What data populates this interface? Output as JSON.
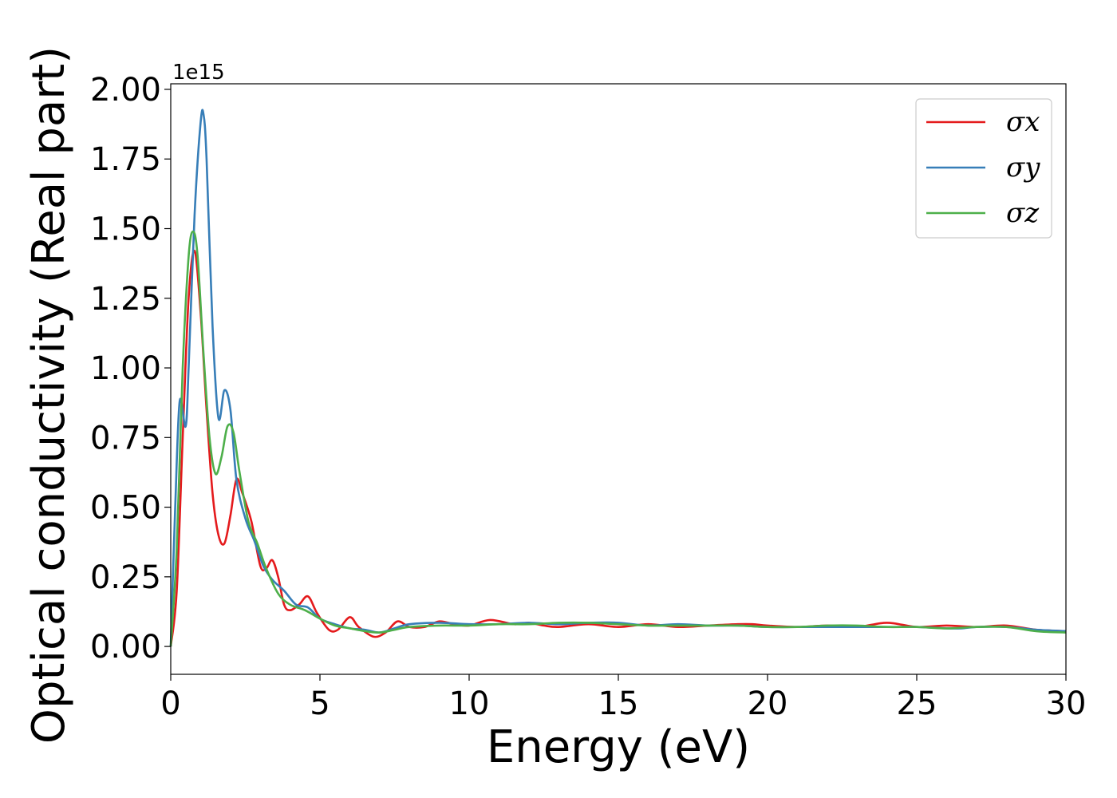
{
  "chart_data": {
    "type": "line",
    "title": "",
    "xlabel": "Energy (eV)",
    "ylabel": "Optical conductivity (Real part)",
    "y_offset_label": "1e15",
    "xlim": [
      0,
      30
    ],
    "ylim": [
      -0.1,
      2.02
    ],
    "x_ticks": [
      0,
      5,
      10,
      15,
      20,
      25,
      30
    ],
    "x_tick_labels": [
      "0",
      "5",
      "10",
      "15",
      "20",
      "25",
      "30"
    ],
    "y_ticks": [
      0,
      0.25,
      0.5,
      0.75,
      1.0,
      1.25,
      1.5,
      1.75,
      2.0
    ],
    "y_tick_labels": [
      "0.00",
      "0.25",
      "0.50",
      "0.75",
      "1.00",
      "1.25",
      "1.50",
      "1.75",
      "2.00"
    ],
    "grid": false,
    "legend_position": "top-right",
    "series": [
      {
        "name": "σx",
        "color": "#e41a1c",
        "x": [
          0,
          0.2,
          0.4,
          0.6,
          0.8,
          1.0,
          1.2,
          1.4,
          1.6,
          1.8,
          2.0,
          2.2,
          2.4,
          2.7,
          3.0,
          3.2,
          3.4,
          3.6,
          3.8,
          4.0,
          4.3,
          4.6,
          4.9,
          5.3,
          5.6,
          6.0,
          6.3,
          6.8,
          7.2,
          7.6,
          8.0,
          8.5,
          9.0,
          9.5,
          10.0,
          10.7,
          11.5,
          12.0,
          12.5,
          13.0,
          14.0,
          15.0,
          16.0,
          17.0,
          18.0,
          19.0,
          19.5,
          20.0,
          21.0,
          22.0,
          23.0,
          24.0,
          25.0,
          26.0,
          27.0,
          28.0,
          29.0,
          30.0
        ],
        "values": [
          0.0,
          0.2,
          0.75,
          1.25,
          1.42,
          1.2,
          0.85,
          0.55,
          0.4,
          0.37,
          0.47,
          0.6,
          0.55,
          0.45,
          0.29,
          0.28,
          0.31,
          0.25,
          0.15,
          0.13,
          0.15,
          0.18,
          0.12,
          0.06,
          0.06,
          0.105,
          0.07,
          0.035,
          0.05,
          0.09,
          0.07,
          0.07,
          0.09,
          0.08,
          0.075,
          0.095,
          0.08,
          0.085,
          0.075,
          0.07,
          0.08,
          0.07,
          0.08,
          0.07,
          0.075,
          0.08,
          0.08,
          0.075,
          0.07,
          0.075,
          0.07,
          0.085,
          0.07,
          0.075,
          0.07,
          0.075,
          0.06,
          0.055
        ]
      },
      {
        "name": "σy",
        "color": "#377eb8",
        "x": [
          0,
          0.15,
          0.3,
          0.5,
          0.6,
          0.8,
          1.0,
          1.1,
          1.2,
          1.4,
          1.6,
          1.8,
          2.0,
          2.2,
          2.5,
          2.8,
          3.1,
          3.4,
          3.8,
          4.2,
          4.6,
          5.0,
          5.5,
          6.0,
          6.5,
          7.0,
          7.5,
          8.0,
          9.0,
          10.0,
          11.0,
          12.0,
          13.0,
          14.0,
          15.0,
          16.0,
          17.0,
          18.0,
          19.0,
          20.0,
          21.0,
          22.0,
          23.0,
          24.0,
          25.0,
          26.0,
          26.5,
          27.0,
          28.0,
          29.0,
          30.0
        ],
        "values": [
          0.0,
          0.5,
          0.88,
          0.79,
          1.0,
          1.55,
          1.88,
          1.91,
          1.75,
          1.15,
          0.82,
          0.92,
          0.85,
          0.6,
          0.46,
          0.38,
          0.29,
          0.24,
          0.2,
          0.15,
          0.14,
          0.1,
          0.08,
          0.065,
          0.06,
          0.05,
          0.065,
          0.08,
          0.085,
          0.08,
          0.08,
          0.085,
          0.08,
          0.085,
          0.085,
          0.075,
          0.08,
          0.075,
          0.075,
          0.07,
          0.07,
          0.07,
          0.07,
          0.07,
          0.07,
          0.065,
          0.065,
          0.07,
          0.07,
          0.06,
          0.055
        ]
      },
      {
        "name": "σz",
        "color": "#4daf4a",
        "x": [
          0,
          0.2,
          0.4,
          0.6,
          0.75,
          0.9,
          1.1,
          1.3,
          1.5,
          1.7,
          1.9,
          2.1,
          2.3,
          2.6,
          2.9,
          3.2,
          3.6,
          4.0,
          4.5,
          5.0,
          5.5,
          6.0,
          6.5,
          7.0,
          7.5,
          8.0,
          9.0,
          10.0,
          11.0,
          12.0,
          13.0,
          14.0,
          15.0,
          16.0,
          17.0,
          18.0,
          19.0,
          20.0,
          21.0,
          22.0,
          23.0,
          24.0,
          25.0,
          26.0,
          27.0,
          28.0,
          29.0,
          30.0
        ],
        "values": [
          0.0,
          0.35,
          1.0,
          1.4,
          1.49,
          1.4,
          1.05,
          0.75,
          0.62,
          0.68,
          0.79,
          0.77,
          0.63,
          0.45,
          0.37,
          0.28,
          0.19,
          0.15,
          0.13,
          0.1,
          0.075,
          0.065,
          0.055,
          0.05,
          0.06,
          0.07,
          0.075,
          0.075,
          0.08,
          0.08,
          0.085,
          0.085,
          0.08,
          0.075,
          0.075,
          0.075,
          0.075,
          0.07,
          0.07,
          0.075,
          0.075,
          0.07,
          0.07,
          0.065,
          0.07,
          0.07,
          0.055,
          0.05
        ]
      }
    ]
  }
}
